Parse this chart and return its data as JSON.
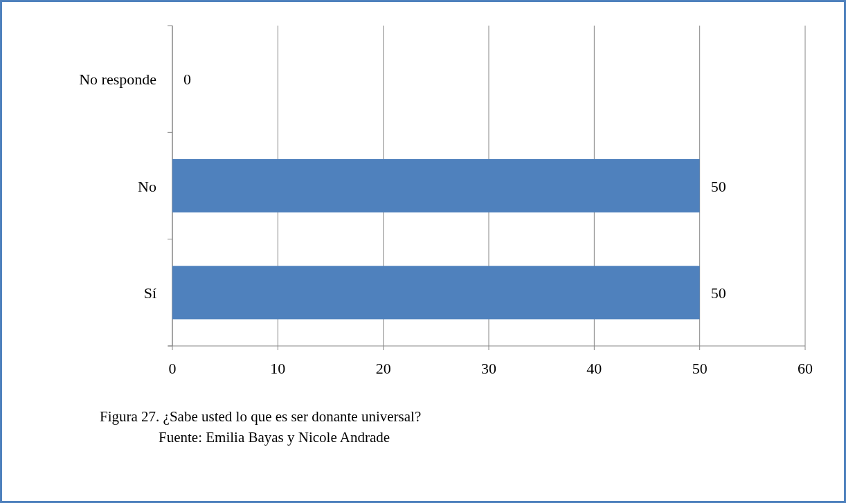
{
  "chart_data": {
    "type": "bar",
    "orientation": "horizontal",
    "categories": [
      "No responde",
      "No",
      "Sí"
    ],
    "values": [
      0,
      50,
      50
    ],
    "color": "#4f81bd",
    "xlim": [
      0,
      60
    ],
    "xticks": [
      0,
      10,
      20,
      30,
      40,
      50,
      60
    ],
    "grid": "x",
    "data_labels": true,
    "annotations": [
      "Figura 27. ¿Sabe usted lo que es ser donante universal?",
      "Fuente: Emilia Bayas y Nicole Andrade"
    ]
  }
}
